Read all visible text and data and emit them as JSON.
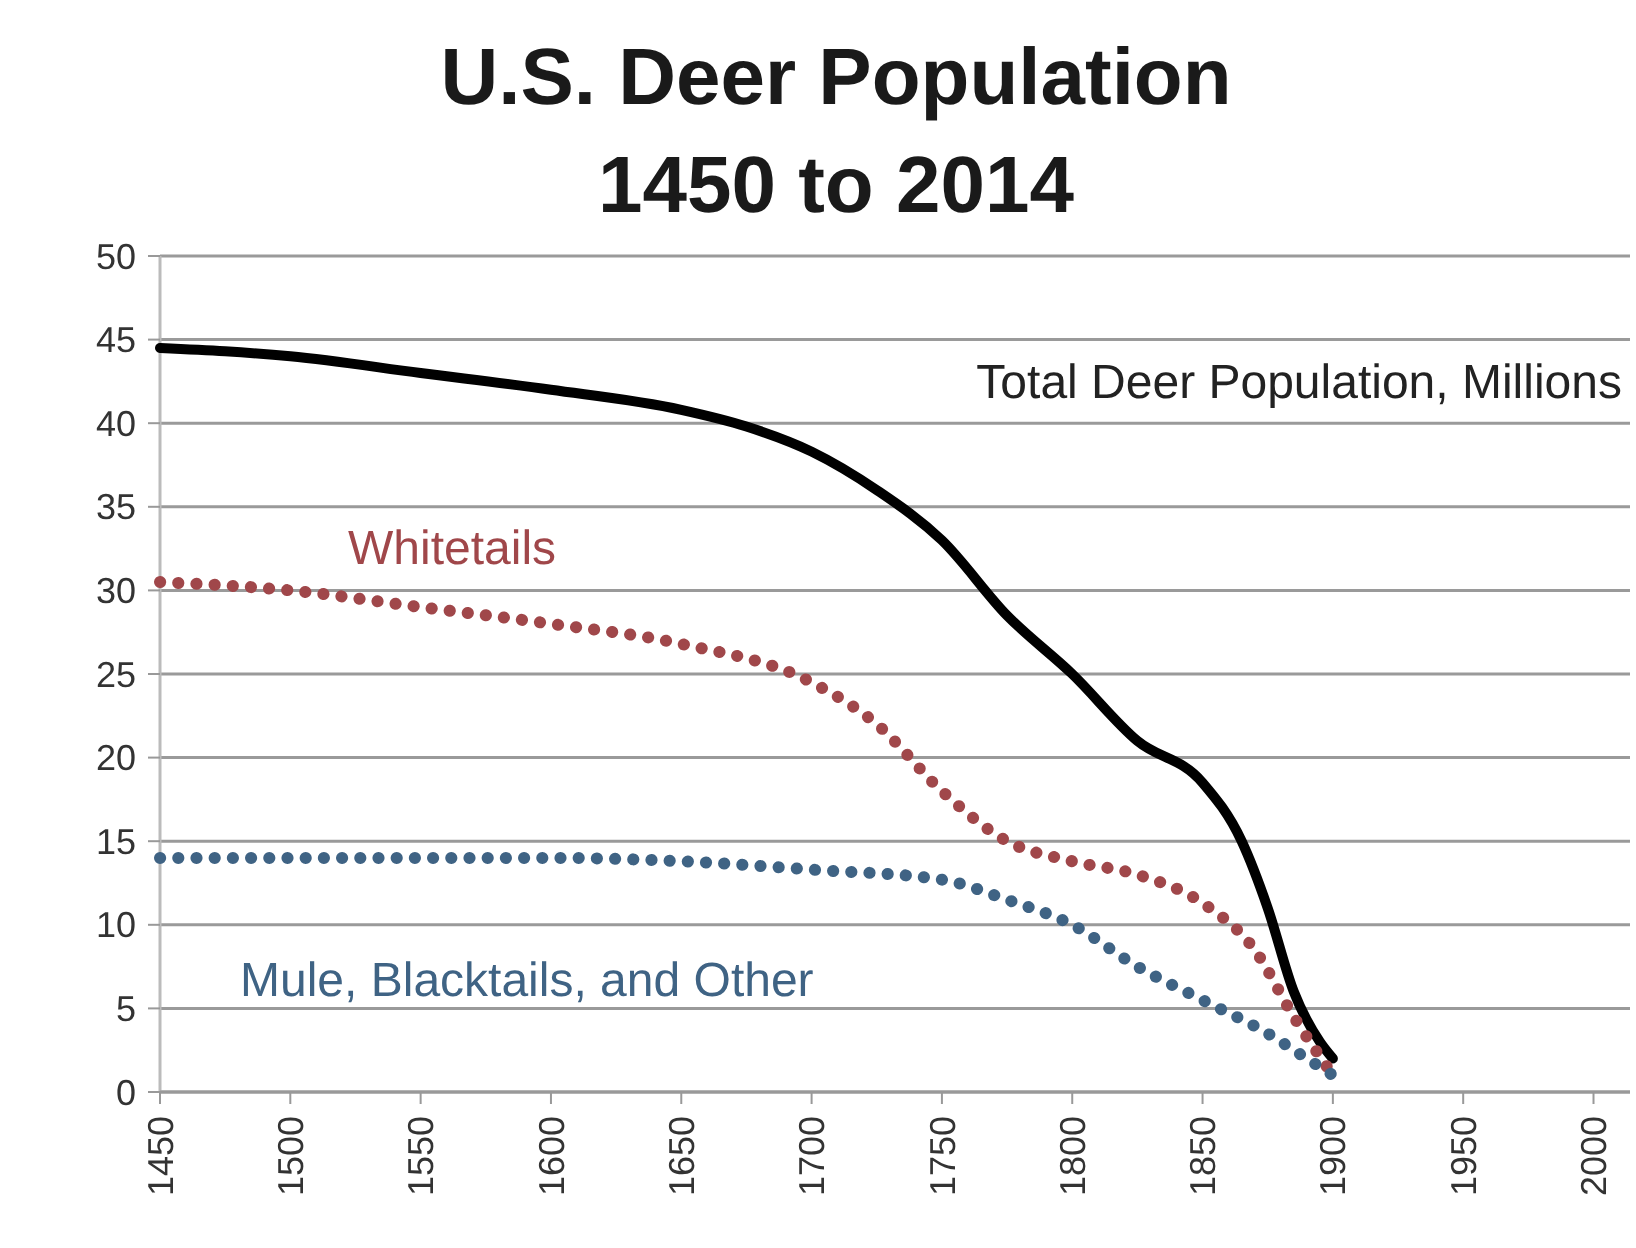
{
  "chart_data": {
    "type": "line",
    "title": "U.S. Deer Population\n1450 to 2014",
    "x": [
      1450,
      1475,
      1500,
      1550,
      1600,
      1650,
      1675,
      1700,
      1725,
      1750,
      1775,
      1800,
      1825,
      1850,
      1865,
      1875,
      1885,
      1895,
      1900
    ],
    "series": [
      {
        "name": "Total Deer Population, Millions",
        "color": "#000000",
        "line_style": "solid",
        "values": [
          44.5,
          44.3,
          44,
          43,
          42,
          40.8,
          39.8,
          38.3,
          36,
          33,
          28.5,
          25,
          21,
          18.5,
          15,
          11,
          6,
          3,
          2
        ]
      },
      {
        "name": "Whitetails",
        "color": "#a0474a",
        "line_style": "dotted",
        "x": [
          1450,
          1500,
          1550,
          1600,
          1650,
          1700,
          1725,
          1750,
          1775,
          1800,
          1825,
          1850,
          1870,
          1885,
          1900
        ],
        "values": [
          30.5,
          30,
          29,
          28,
          26.8,
          24.5,
          22,
          18,
          15,
          13.8,
          13,
          11.3,
          8.5,
          4.5,
          1
        ]
      },
      {
        "name": "Mule, Blacktails, and Other",
        "color": "#3f6384",
        "line_style": "dotted",
        "x": [
          1450,
          1500,
          1600,
          1650,
          1700,
          1750,
          1775,
          1800,
          1825,
          1850,
          1875,
          1890,
          1900
        ],
        "values": [
          14,
          14,
          14,
          13.8,
          13.3,
          12.7,
          11.5,
          10,
          7.5,
          5.5,
          3.5,
          2,
          1
        ]
      }
    ],
    "xlim": [
      1450,
      2014
    ],
    "xticks": [
      1450,
      1500,
      1550,
      1600,
      1650,
      1700,
      1750,
      1800,
      1850,
      1900,
      1950,
      2000
    ],
    "ylim": [
      0,
      50
    ],
    "yticks": [
      0,
      5,
      10,
      15,
      20,
      25,
      30,
      35,
      40,
      45,
      50
    ],
    "grid": "y",
    "marker": "none"
  }
}
